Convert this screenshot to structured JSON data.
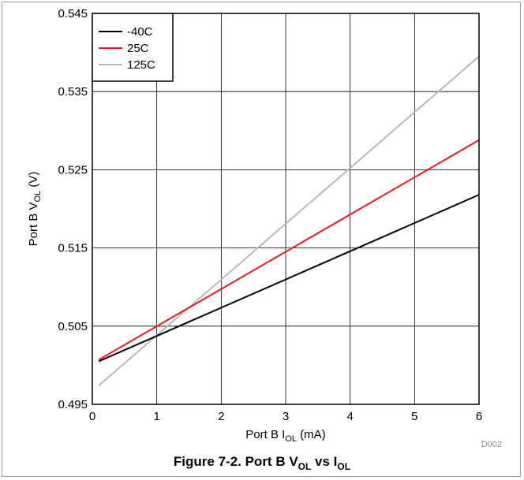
{
  "chart_data": {
    "type": "line",
    "x": [
      0.1,
      6
    ],
    "series": [
      {
        "name": "-40C",
        "color": "#000000",
        "values": [
          0.5005,
          0.5218
        ]
      },
      {
        "name": " 25C",
        "color": "#e31b1b",
        "values": [
          0.5007,
          0.5288
        ]
      },
      {
        "name": "125C",
        "color": "#b8b8b8",
        "values": [
          0.4974,
          0.5395
        ]
      }
    ],
    "xlim": [
      0,
      6
    ],
    "ylim": [
      0.495,
      0.545
    ],
    "xticks": [
      "0",
      "1",
      "2",
      "3",
      "4",
      "5",
      "6"
    ],
    "yticks": [
      "0.495",
      "0.505",
      "0.515",
      "0.525",
      "0.535",
      "0.545"
    ],
    "xlabel": {
      "main": "Port B I",
      "sub": "OL",
      "suffix": " (mA)"
    },
    "ylabel": {
      "main": "Port B V",
      "sub": "OL",
      "suffix": " (V)"
    },
    "grid": true,
    "legend_position": "top-left",
    "code": "D002"
  },
  "caption": {
    "p1": "Figure 7-2. Port B V",
    "s1": "OL",
    "p2": " vs I",
    "s2": "OL"
  }
}
